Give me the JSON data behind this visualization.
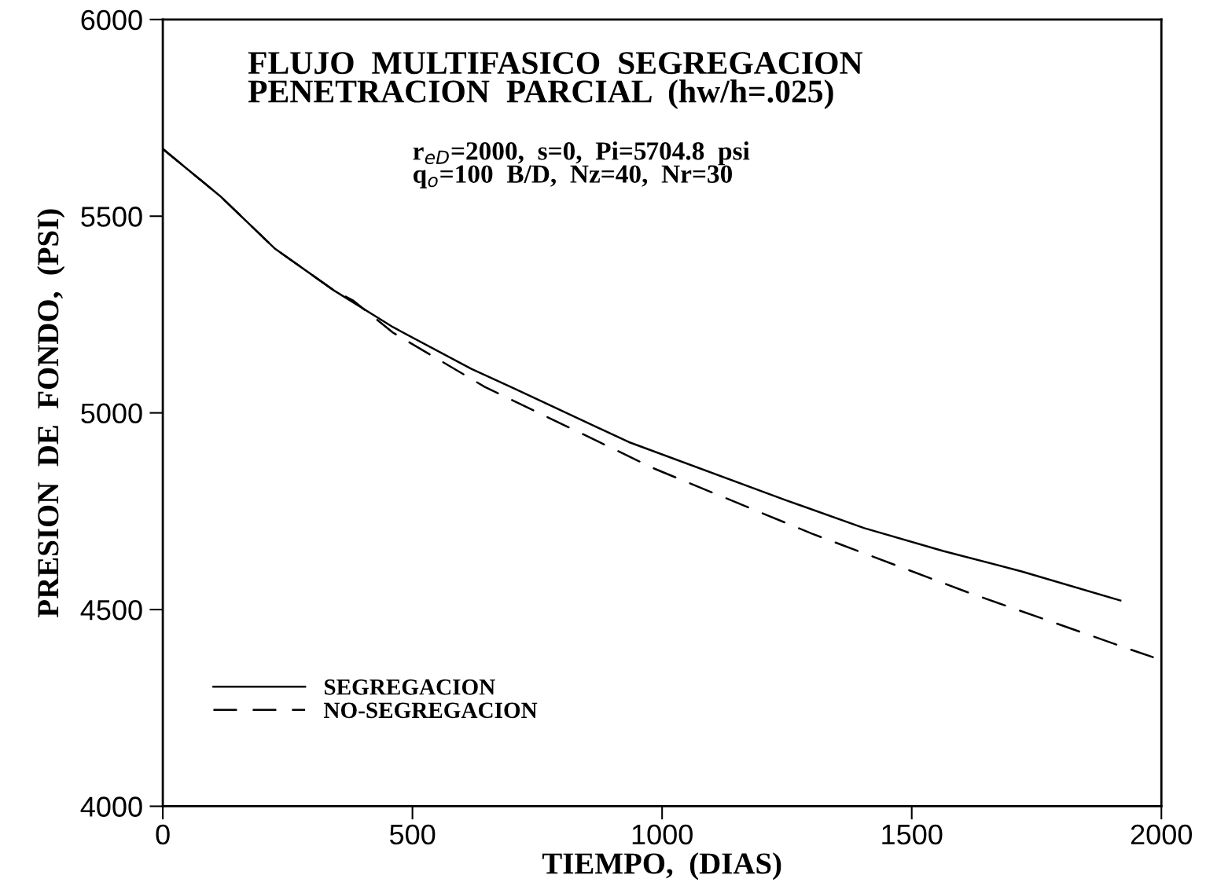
{
  "chart_data": {
    "type": "line",
    "title": "FLUJO  MULTIFASICO  SEGREGACION\nPENETRACION  PARCIAL  (hw/h=.025)",
    "xlabel": "TIEMPO,  (DIAS)",
    "ylabel": "PRESION  DE  FONDO,  (PSI)",
    "annotations": [
      "r$_{eD}$=2000,  s=0,  Pi=5704.8  psi\nq$_{o}$=100  B/D,  Nz=40,  Nr=30"
    ],
    "series": [
      {
        "name": "SEGREGACION",
        "color": "#000000",
        "line_style": "solid",
        "x": [
          0,
          115,
          225,
          343,
          461,
          618,
          697,
          933,
          1248,
          1405,
          1563,
          1720,
          1918
        ],
        "values": [
          5671,
          5551,
          5417,
          5311,
          5218,
          5112,
          5066,
          4926,
          4778,
          4707,
          4649,
          4597,
          4523
        ]
      },
      {
        "name": "NO-SEGREGACION",
        "color": "#000000",
        "line_style": "dashed",
        "x": [
          0,
          115,
          225,
          343,
          382,
          461,
          645,
          985,
          1300,
          1614,
          1937,
          1983
        ],
        "values": [
          5671,
          5551,
          5417,
          5311,
          5285,
          5204,
          5066,
          4858,
          4693,
          4543,
          4399,
          4379
        ]
      }
    ],
    "xlim": [
      0,
      2000
    ],
    "ylim": [
      4000,
      6000
    ],
    "xticks": [
      0,
      500,
      1000,
      1500,
      2000
    ],
    "yticks": [
      4000,
      4500,
      5000,
      5500,
      6000
    ],
    "grid": false,
    "legend": "bottom left"
  }
}
